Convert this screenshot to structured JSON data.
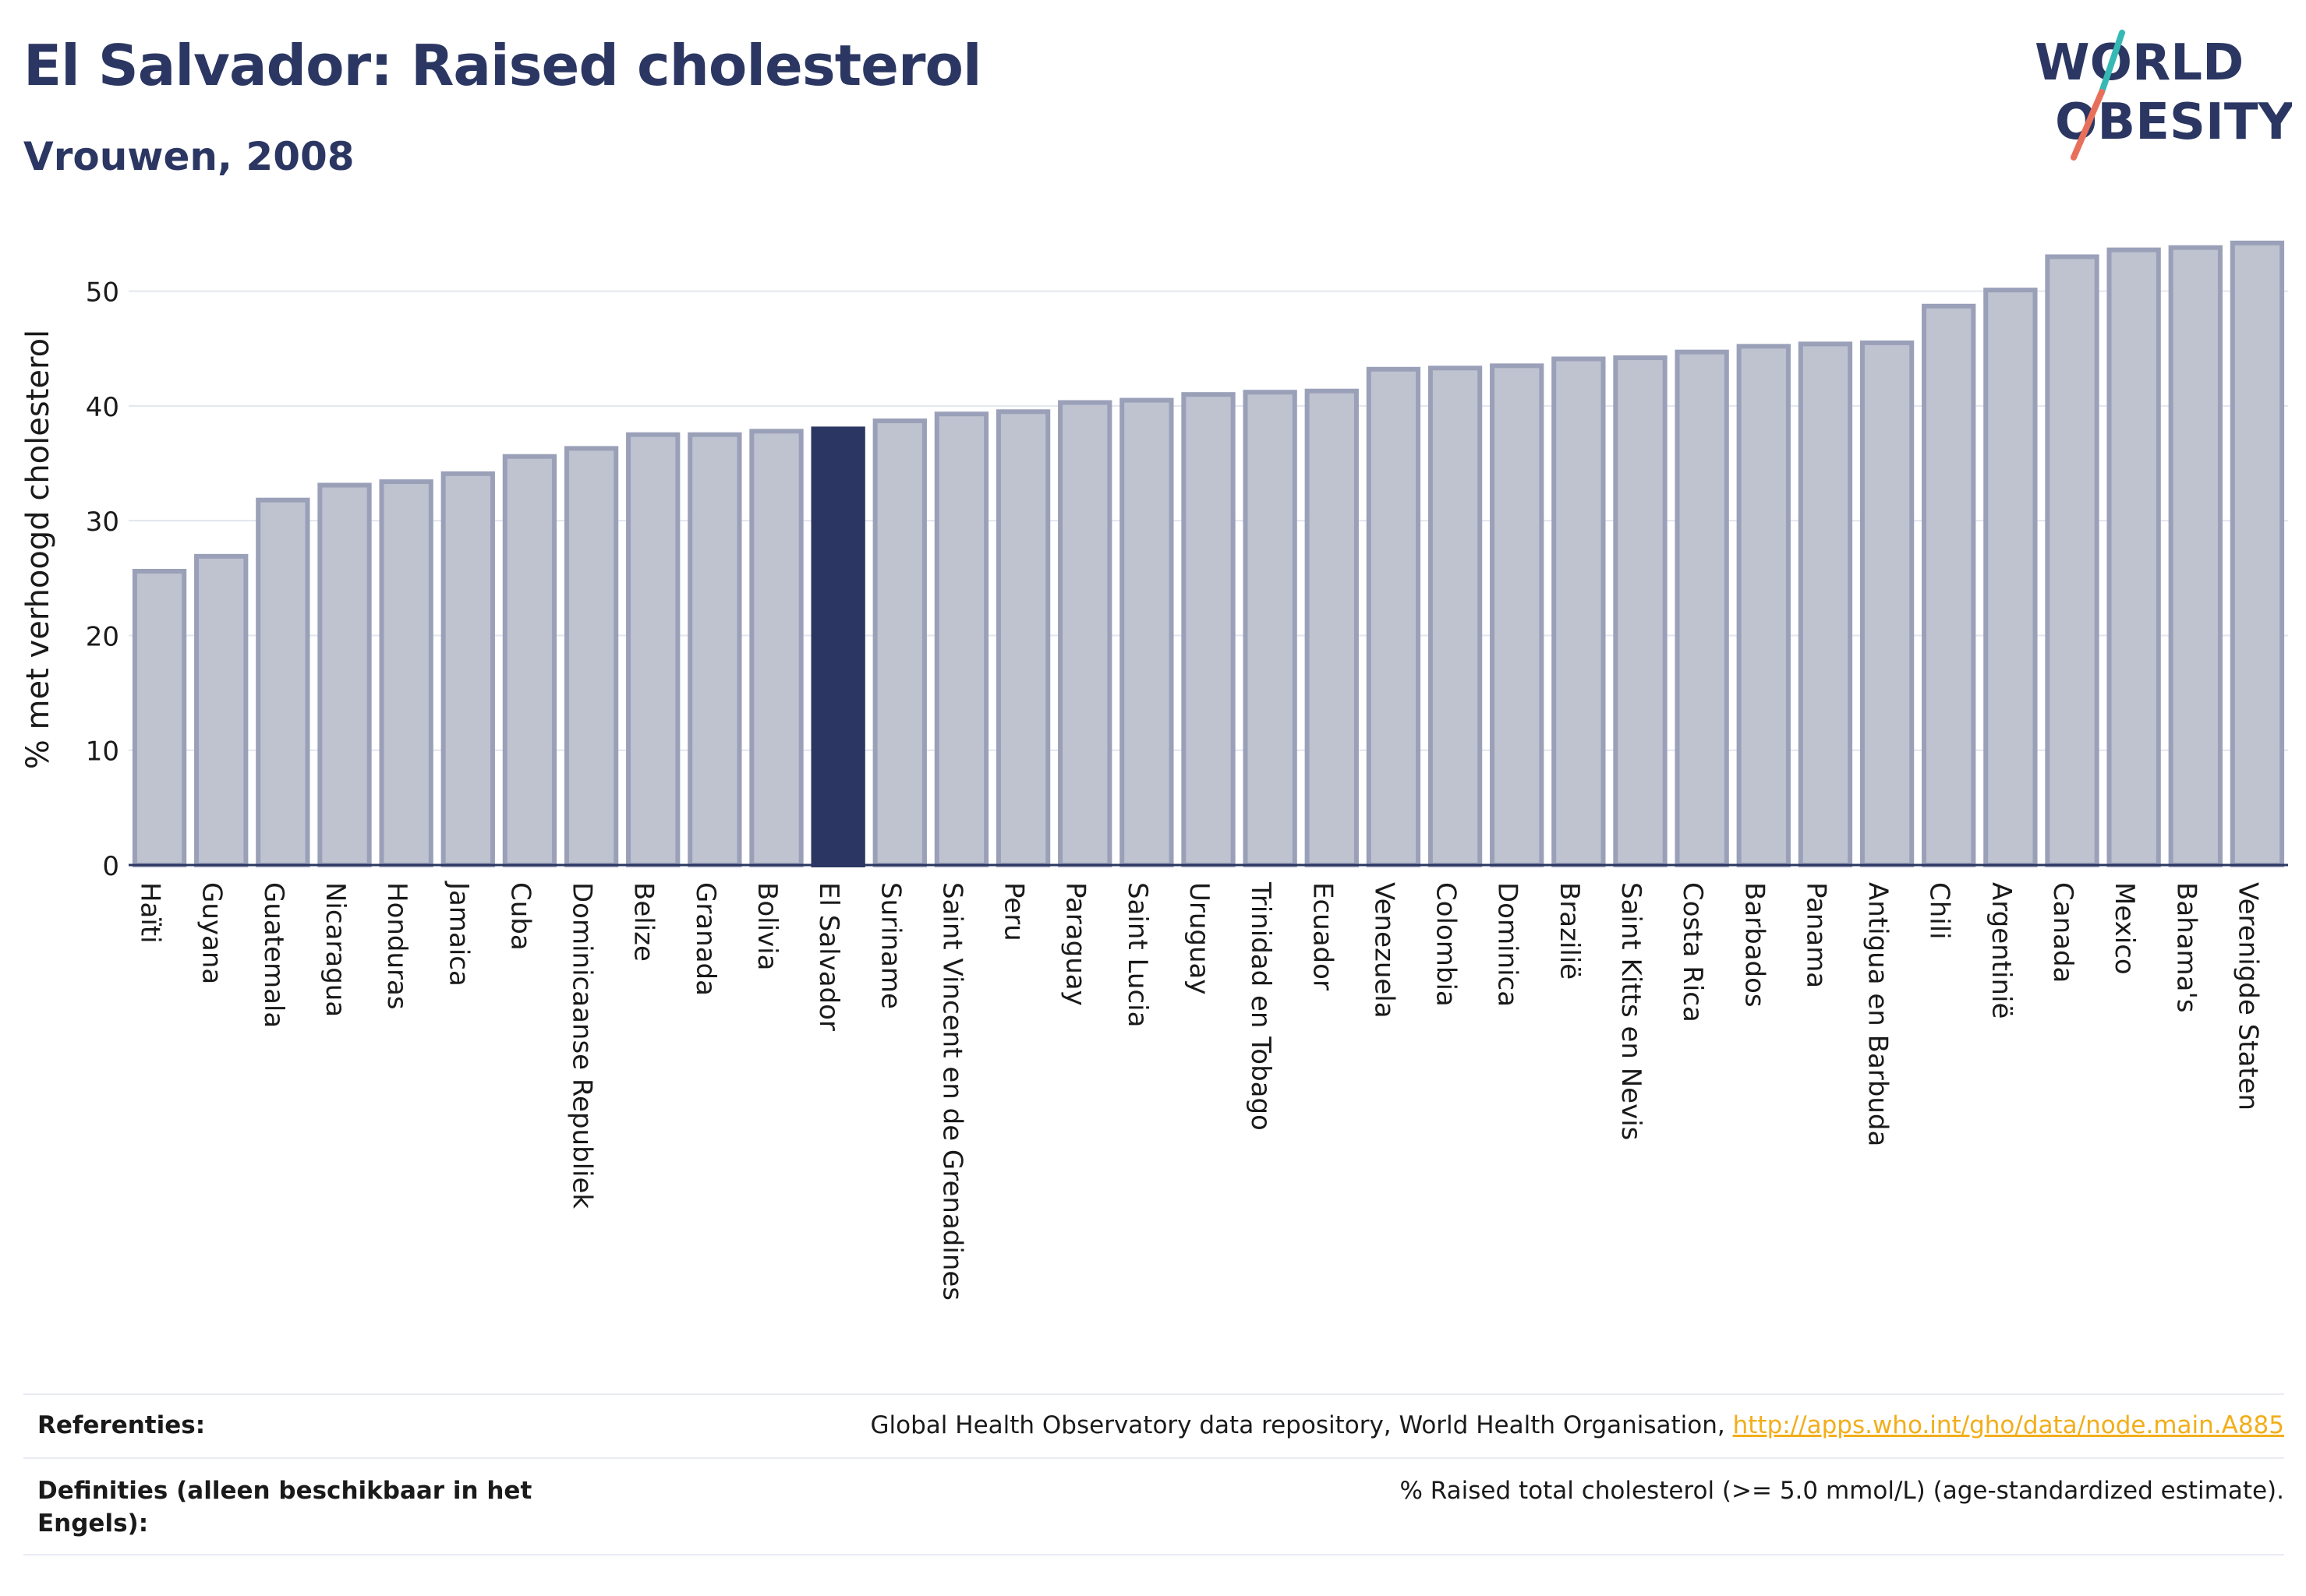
{
  "header": {
    "title": "El Salvador: Raised cholesterol",
    "subtitle": "Vrouwen, 2008"
  },
  "logo": {
    "line1": "WORLD",
    "line2": "OBESITY"
  },
  "chart_data": {
    "type": "bar",
    "ylabel": "% met verhoogd cholesterol",
    "ylim": [
      0,
      55
    ],
    "yticks": [
      0,
      10,
      20,
      30,
      40,
      50
    ],
    "grid": true,
    "highlight": "El Salvador",
    "colors": {
      "bar": "#bfc3d0",
      "bar_border": "#9aa0b8",
      "highlight": "#2b3762",
      "axis": "#2b3762",
      "grid": "#e3e6ee"
    },
    "categories": [
      "Haïti",
      "Guyana",
      "Guatemala",
      "Nicaragua",
      "Honduras",
      "Jamaica",
      "Cuba",
      "Dominicaanse Republiek",
      "Belize",
      "Granada",
      "Bolivia",
      "El Salvador",
      "Suriname",
      "Saint Vincent en de Grenadines",
      "Peru",
      "Paraguay",
      "Saint Lucia",
      "Uruguay",
      "Trinidad en Tobago",
      "Ecuador",
      "Venezuela",
      "Colombia",
      "Dominica",
      "Brazilië",
      "Saint Kitts en Nevis",
      "Costa Rica",
      "Barbados",
      "Panama",
      "Antigua en Barbuda",
      "Chili",
      "Argentinië",
      "Canada",
      "Mexico",
      "Bahama's",
      "Verenigde Staten"
    ],
    "values": [
      25.6,
      26.9,
      31.8,
      33.1,
      33.4,
      34.1,
      35.6,
      36.3,
      37.5,
      37.5,
      37.8,
      38.0,
      38.7,
      39.3,
      39.5,
      40.3,
      40.5,
      41.0,
      41.2,
      41.3,
      43.2,
      43.3,
      43.5,
      44.1,
      44.2,
      44.7,
      45.2,
      45.4,
      45.5,
      48.7,
      50.1,
      53.0,
      53.6,
      53.8,
      54.2
    ]
  },
  "footer": {
    "references_label": "Referenties:",
    "references_text": "Global Health Observatory data repository, World Health Organisation,",
    "references_link": "http://apps.who.int/gho/data/node.main.A885",
    "definitions_label": "Definities (alleen beschikbaar in het Engels):",
    "definitions_text": "% Raised total cholesterol (>= 5.0 mmol/L) (age-standardized estimate)."
  }
}
